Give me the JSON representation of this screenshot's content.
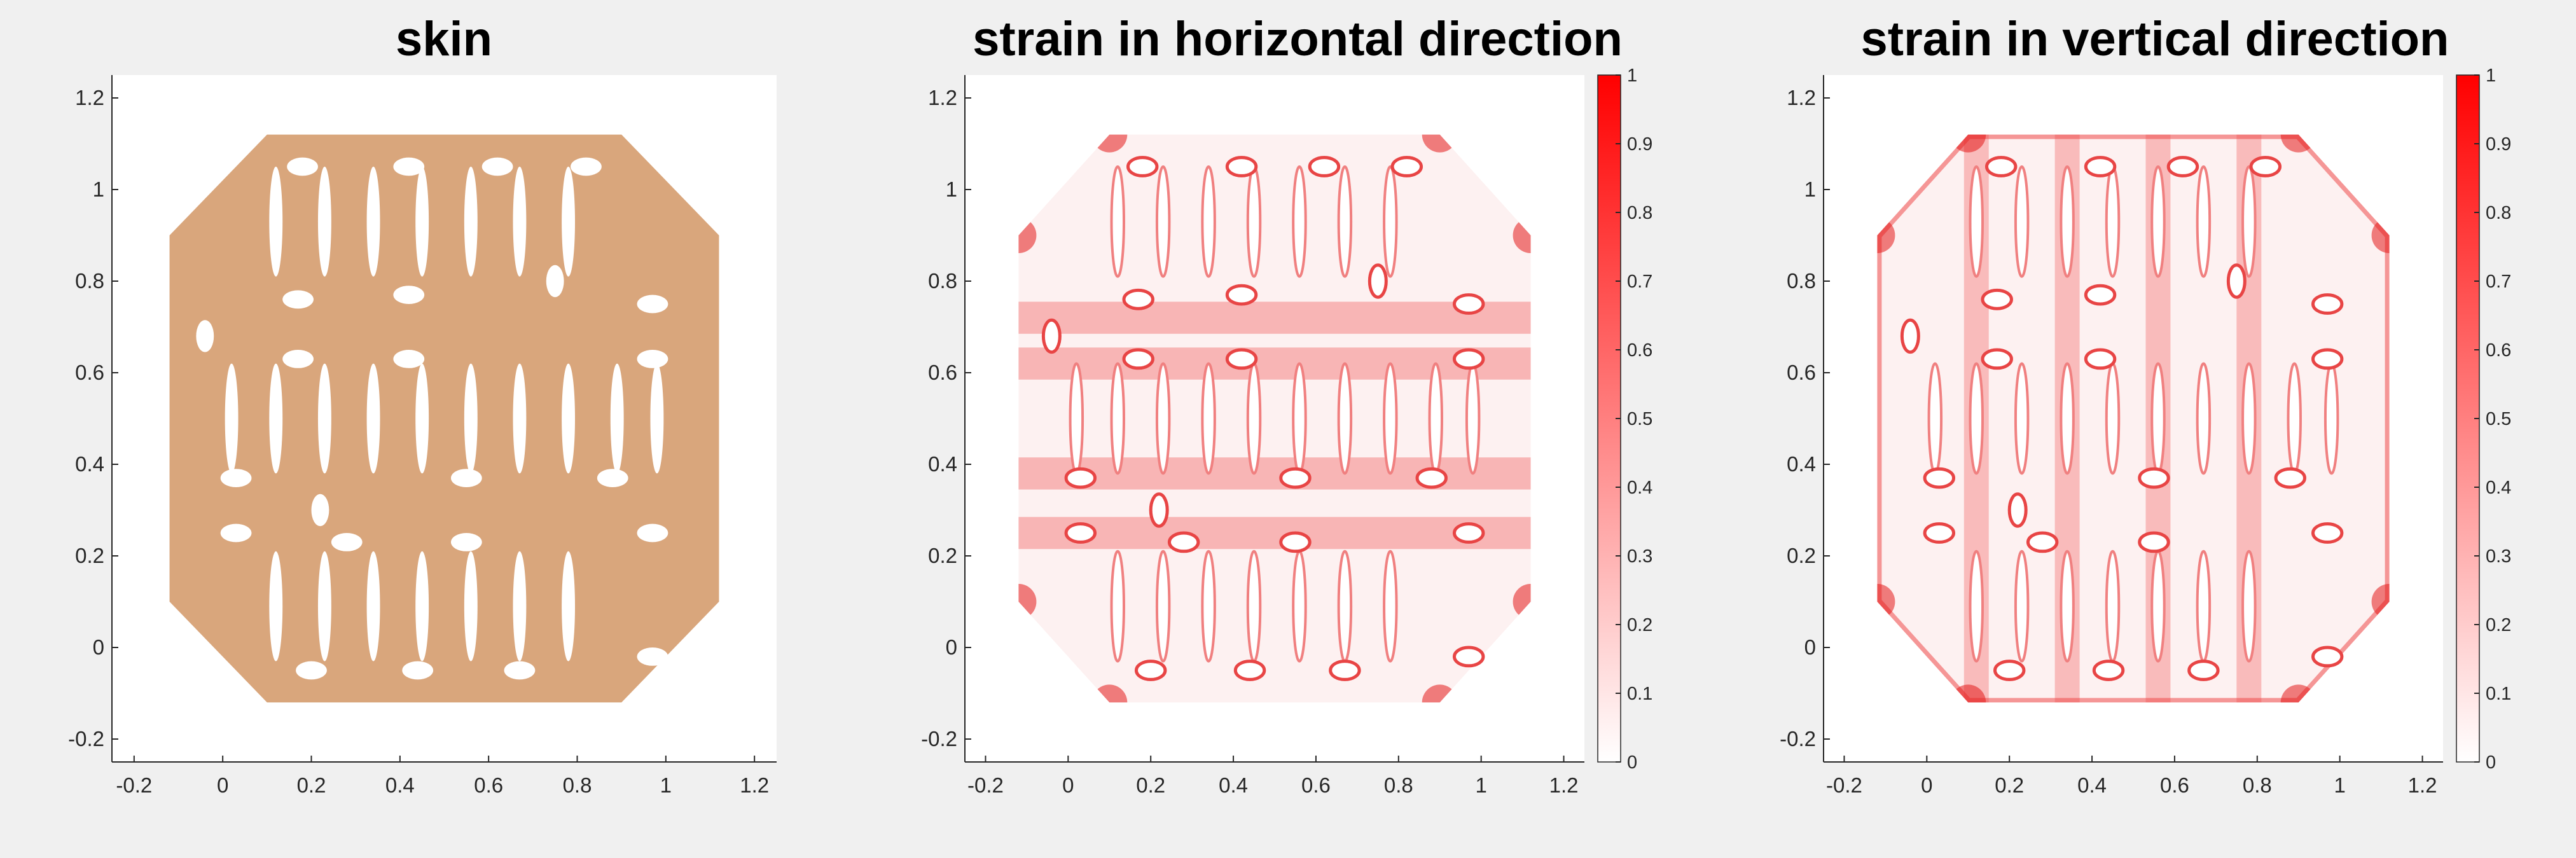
{
  "chart_data": [
    {
      "type": "heatmap",
      "title": "skin",
      "xlim": [
        -0.25,
        1.25
      ],
      "ylim": [
        -0.25,
        1.25
      ],
      "xticks": [
        -0.2,
        0,
        0.2,
        0.4,
        0.6,
        0.8,
        1,
        1.2
      ],
      "yticks": [
        -0.2,
        0,
        0.2,
        0.4,
        0.6,
        0.8,
        1,
        1.2
      ],
      "xtick_labels": [
        "-0.2",
        "0",
        "0.2",
        "0.4",
        "0.6",
        "0.8",
        "1",
        "1.2"
      ],
      "ytick_labels": [
        "-0.2",
        "0",
        "0.2",
        "0.4",
        "0.6",
        "0.8",
        "1",
        "1.2"
      ],
      "fill_color": "#d9a67c",
      "colorbar": null
    },
    {
      "type": "heatmap",
      "title": "strain in horizontal direction",
      "xlim": [
        -0.25,
        1.25
      ],
      "ylim": [
        -0.25,
        1.25
      ],
      "xticks": [
        -0.2,
        0,
        0.2,
        0.4,
        0.6,
        0.8,
        1,
        1.2
      ],
      "yticks": [
        -0.2,
        0,
        0.2,
        0.4,
        0.6,
        0.8,
        1,
        1.2
      ],
      "xtick_labels": [
        "-0.2",
        "0",
        "0.2",
        "0.4",
        "0.6",
        "0.8",
        "1",
        "1.2"
      ],
      "ytick_labels": [
        "-0.2",
        "0",
        "0.2",
        "0.4",
        "0.6",
        "0.8",
        "1",
        "1.2"
      ],
      "strain_bands_y": [
        0.72,
        0.62,
        0.38,
        0.25
      ],
      "colorbar": {
        "range": [
          0,
          1
        ],
        "ticks": [
          0,
          0.1,
          0.2,
          0.3,
          0.4,
          0.5,
          0.6,
          0.7,
          0.8,
          0.9,
          1
        ],
        "tick_labels": [
          "0",
          "0.1",
          "0.2",
          "0.3",
          "0.4",
          "0.5",
          "0.6",
          "0.7",
          "0.8",
          "0.9",
          "1"
        ],
        "color_low": "#ffffff",
        "color_high": "#ff0000"
      }
    },
    {
      "type": "heatmap",
      "title": "strain in vertical direction",
      "xlim": [
        -0.25,
        1.25
      ],
      "ylim": [
        -0.25,
        1.25
      ],
      "xticks": [
        -0.2,
        0,
        0.2,
        0.4,
        0.6,
        0.8,
        1,
        1.2
      ],
      "yticks": [
        -0.2,
        0,
        0.2,
        0.4,
        0.6,
        0.8,
        1,
        1.2
      ],
      "xtick_labels": [
        "-0.2",
        "0",
        "0.2",
        "0.4",
        "0.6",
        "0.8",
        "1",
        "1.2"
      ],
      "ytick_labels": [
        "-0.2",
        "0",
        "0.2",
        "0.4",
        "0.6",
        "0.8",
        "1",
        "1.2"
      ],
      "strain_bands_x": [
        0.12,
        0.34,
        0.56,
        0.78
      ],
      "colorbar": {
        "range": [
          0,
          1
        ],
        "ticks": [
          0,
          0.1,
          0.2,
          0.3,
          0.4,
          0.5,
          0.6,
          0.7,
          0.8,
          0.9,
          1
        ],
        "tick_labels": [
          "0",
          "0.1",
          "0.2",
          "0.3",
          "0.4",
          "0.5",
          "0.6",
          "0.7",
          "0.8",
          "0.9",
          "1"
        ],
        "color_low": "#ffffff",
        "color_high": "#ff0000"
      }
    }
  ],
  "shape": {
    "outline": [
      [
        0.1,
        -0.12
      ],
      [
        0.9,
        -0.12
      ],
      [
        1.12,
        0.1
      ],
      [
        1.12,
        0.9
      ],
      [
        0.9,
        1.12
      ],
      [
        0.1,
        1.12
      ],
      [
        -0.12,
        0.9
      ],
      [
        -0.12,
        0.1
      ]
    ],
    "elongated_slots": [
      [
        0.02,
        0.5,
        0.015,
        0.12
      ],
      [
        0.12,
        0.5,
        0.015,
        0.12
      ],
      [
        0.23,
        0.5,
        0.015,
        0.12
      ],
      [
        0.34,
        0.5,
        0.015,
        0.12
      ],
      [
        0.45,
        0.5,
        0.015,
        0.12
      ],
      [
        0.56,
        0.5,
        0.015,
        0.12
      ],
      [
        0.67,
        0.5,
        0.015,
        0.12
      ],
      [
        0.78,
        0.5,
        0.015,
        0.12
      ],
      [
        0.89,
        0.5,
        0.015,
        0.12
      ],
      [
        0.98,
        0.5,
        0.015,
        0.12
      ],
      [
        0.12,
        0.93,
        0.015,
        0.12
      ],
      [
        0.23,
        0.93,
        0.015,
        0.12
      ],
      [
        0.34,
        0.93,
        0.015,
        0.12
      ],
      [
        0.45,
        0.93,
        0.015,
        0.12
      ],
      [
        0.56,
        0.93,
        0.015,
        0.12
      ],
      [
        0.67,
        0.93,
        0.015,
        0.12
      ],
      [
        0.78,
        0.93,
        0.015,
        0.12
      ],
      [
        0.12,
        0.09,
        0.015,
        0.12
      ],
      [
        0.23,
        0.09,
        0.015,
        0.12
      ],
      [
        0.34,
        0.09,
        0.015,
        0.12
      ],
      [
        0.45,
        0.09,
        0.015,
        0.12
      ],
      [
        0.56,
        0.09,
        0.015,
        0.12
      ],
      [
        0.67,
        0.09,
        0.015,
        0.12
      ],
      [
        0.78,
        0.09,
        0.015,
        0.12
      ]
    ],
    "small_holes": [
      [
        0.18,
        1.05,
        0.035,
        0.02
      ],
      [
        0.42,
        1.05,
        0.035,
        0.02
      ],
      [
        0.62,
        1.05,
        0.035,
        0.02
      ],
      [
        0.82,
        1.05,
        0.035,
        0.02
      ],
      [
        0.17,
        0.76,
        0.035,
        0.02
      ],
      [
        0.42,
        0.77,
        0.035,
        0.02
      ],
      [
        0.75,
        0.8,
        0.02,
        0.035
      ],
      [
        0.97,
        0.75,
        0.035,
        0.02
      ],
      [
        -0.04,
        0.68,
        0.02,
        0.035
      ],
      [
        0.17,
        0.63,
        0.035,
        0.02
      ],
      [
        0.42,
        0.63,
        0.035,
        0.02
      ],
      [
        0.97,
        0.63,
        0.035,
        0.02
      ],
      [
        0.03,
        0.37,
        0.035,
        0.02
      ],
      [
        0.22,
        0.3,
        0.02,
        0.035
      ],
      [
        0.55,
        0.37,
        0.035,
        0.02
      ],
      [
        0.88,
        0.37,
        0.035,
        0.02
      ],
      [
        0.03,
        0.25,
        0.035,
        0.02
      ],
      [
        0.28,
        0.23,
        0.035,
        0.02
      ],
      [
        0.55,
        0.23,
        0.035,
        0.02
      ],
      [
        0.97,
        0.25,
        0.035,
        0.02
      ],
      [
        0.2,
        -0.05,
        0.035,
        0.02
      ],
      [
        0.44,
        -0.05,
        0.035,
        0.02
      ],
      [
        0.67,
        -0.05,
        0.035,
        0.02
      ],
      [
        0.97,
        -0.02,
        0.035,
        0.02
      ]
    ]
  }
}
